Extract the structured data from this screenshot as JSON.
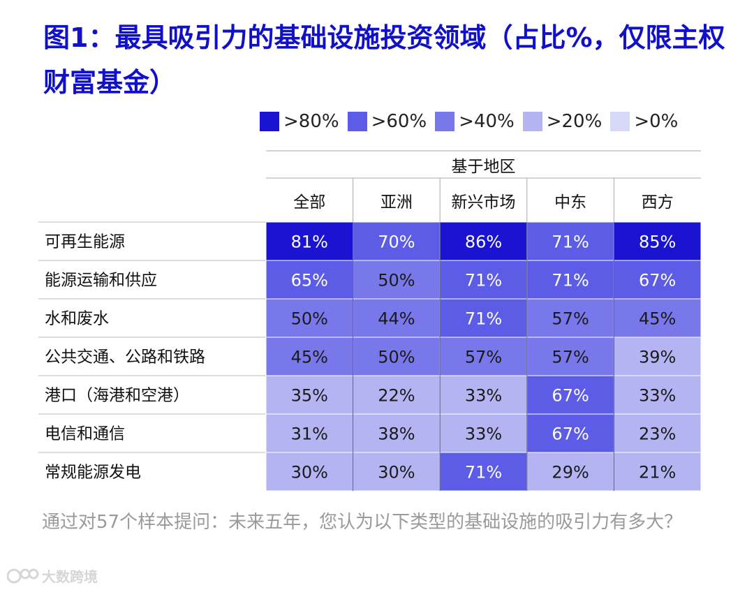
{
  "title": "图1：最具吸引力的基础设施投资领域（占比%，仅限主权财富基金）",
  "legend": [
    {
      "label": ">80%",
      "color": "#1a14d2"
    },
    {
      "label": ">60%",
      "color": "#5c5ce6"
    },
    {
      "label": ">40%",
      "color": "#7878ea"
    },
    {
      "label": ">20%",
      "color": "#b4b4f2"
    },
    {
      "label": ">0%",
      "color": "#d8d8f8"
    }
  ],
  "caption": "通过对57个样本提问：未来五年，您认为以下类型的基础设施的吸引力有多大？",
  "watermark": "大数跨境",
  "chart_data": {
    "type": "heatmap",
    "group_header": "基于地区",
    "columns": [
      "全部",
      "亚洲",
      "新兴市场",
      "中东",
      "西方"
    ],
    "rows": [
      "可再生能源",
      "能源运输和供应",
      "水和废水",
      "公共交通、公路和铁路",
      "港口（海港和空港）",
      "电信和通信",
      "常规能源发电"
    ],
    "values": [
      [
        81,
        70,
        86,
        71,
        85
      ],
      [
        65,
        50,
        71,
        71,
        67
      ],
      [
        50,
        44,
        71,
        57,
        45
      ],
      [
        45,
        50,
        57,
        57,
        39
      ],
      [
        35,
        22,
        33,
        67,
        33
      ],
      [
        31,
        38,
        33,
        67,
        23
      ],
      [
        30,
        30,
        71,
        29,
        21
      ]
    ],
    "unit": "%",
    "color_scale": [
      {
        "min": 80,
        "color": "#1a14d2"
      },
      {
        "min": 60,
        "color": "#5c5ce6"
      },
      {
        "min": 40,
        "color": "#7878ea"
      },
      {
        "min": 20,
        "color": "#b4b4f2"
      },
      {
        "min": 0,
        "color": "#d8d8f8"
      }
    ]
  }
}
